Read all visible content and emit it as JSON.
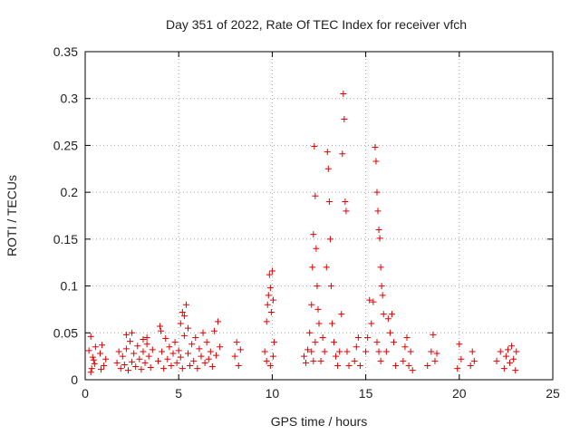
{
  "chart_data": {
    "type": "scatter",
    "title": "Day 351 of 2022, Rate Of TEC Index for receiver vfch",
    "xlabel": "GPS time / hours",
    "ylabel": "ROTI / TECUs",
    "xlim": [
      0,
      25
    ],
    "ylim": [
      0,
      0.35
    ],
    "xticks": [
      0,
      5,
      10,
      15,
      20,
      25
    ],
    "xtick_labels": [
      "0",
      "5",
      "10",
      "15",
      "20",
      "25"
    ],
    "yticks": [
      0,
      0.05,
      0.1,
      0.15,
      0.2,
      0.25,
      0.3,
      0.35
    ],
    "ytick_labels": [
      "0",
      "0.05",
      "0.1",
      "0.15",
      "0.2",
      "0.25",
      "0.3",
      "0.35"
    ],
    "grid": true,
    "marker": "+",
    "marker_color": "#e00000",
    "series": [
      {
        "name": "ROTI",
        "points": [
          [
            0.2,
            0.031
          ],
          [
            0.3,
            0.046
          ],
          [
            0.35,
            0.012
          ],
          [
            0.4,
            0.024
          ],
          [
            0.5,
            0.017
          ],
          [
            0.55,
            0.035
          ],
          [
            0.3,
            0.008
          ],
          [
            0.45,
            0.021
          ],
          [
            0.8,
            0.028
          ],
          [
            0.9,
            0.037
          ],
          [
            1.0,
            0.015
          ],
          [
            1.1,
            0.022
          ],
          [
            0.85,
            0.011
          ],
          [
            1.7,
            0.018
          ],
          [
            1.8,
            0.03
          ],
          [
            1.9,
            0.012
          ],
          [
            2.0,
            0.025
          ],
          [
            2.1,
            0.016
          ],
          [
            2.2,
            0.033
          ],
          [
            2.3,
            0.01
          ],
          [
            2.4,
            0.041
          ],
          [
            2.5,
            0.019
          ],
          [
            2.6,
            0.028
          ],
          [
            2.7,
            0.014
          ],
          [
            2.8,
            0.036
          ],
          [
            2.9,
            0.022
          ],
          [
            3.0,
            0.011
          ],
          [
            3.1,
            0.03
          ],
          [
            3.2,
            0.018
          ],
          [
            3.3,
            0.045
          ],
          [
            3.4,
            0.025
          ],
          [
            3.5,
            0.013
          ],
          [
            3.6,
            0.032
          ],
          [
            2.2,
            0.048
          ],
          [
            2.5,
            0.05
          ],
          [
            3.1,
            0.043
          ],
          [
            3.3,
            0.038
          ],
          [
            3.9,
            0.02
          ],
          [
            4.0,
            0.057
          ],
          [
            4.05,
            0.052
          ],
          [
            4.1,
            0.03
          ],
          [
            4.2,
            0.012
          ],
          [
            4.3,
            0.044
          ],
          [
            4.4,
            0.022
          ],
          [
            4.5,
            0.035
          ],
          [
            4.6,
            0.015
          ],
          [
            4.7,
            0.028
          ],
          [
            4.8,
            0.04
          ],
          [
            4.9,
            0.018
          ],
          [
            5.0,
            0.031
          ],
          [
            5.1,
            0.024
          ],
          [
            5.2,
            0.012
          ],
          [
            5.3,
            0.047
          ],
          [
            5.1,
            0.06
          ],
          [
            5.2,
            0.072
          ],
          [
            5.3,
            0.068
          ],
          [
            5.4,
            0.08
          ],
          [
            5.5,
            0.055
          ],
          [
            5.5,
            0.028
          ],
          [
            5.6,
            0.015
          ],
          [
            5.7,
            0.038
          ],
          [
            5.8,
            0.02
          ],
          [
            5.9,
            0.045
          ],
          [
            6.0,
            0.012
          ],
          [
            6.1,
            0.033
          ],
          [
            6.2,
            0.025
          ],
          [
            6.3,
            0.05
          ],
          [
            6.4,
            0.018
          ],
          [
            6.5,
            0.04
          ],
          [
            6.6,
            0.022
          ],
          [
            6.7,
            0.03
          ],
          [
            6.8,
            0.014
          ],
          [
            6.9,
            0.052
          ],
          [
            7.0,
            0.026
          ],
          [
            7.1,
            0.062
          ],
          [
            7.2,
            0.035
          ],
          [
            8.0,
            0.025
          ],
          [
            8.1,
            0.04
          ],
          [
            8.2,
            0.015
          ],
          [
            8.3,
            0.032
          ],
          [
            9.6,
            0.03
          ],
          [
            9.7,
            0.062
          ],
          [
            9.75,
            0.08
          ],
          [
            9.8,
            0.09
          ],
          [
            9.85,
            0.112
          ],
          [
            9.9,
            0.098
          ],
          [
            9.95,
            0.072
          ],
          [
            10.0,
            0.116
          ],
          [
            10.05,
            0.085
          ],
          [
            10.1,
            0.04
          ],
          [
            9.7,
            0.02
          ],
          [
            9.9,
            0.015
          ],
          [
            10.05,
            0.025
          ],
          [
            11.7,
            0.025
          ],
          [
            11.8,
            0.018
          ],
          [
            11.9,
            0.032
          ],
          [
            12.0,
            0.05
          ],
          [
            12.1,
            0.08
          ],
          [
            12.15,
            0.12
          ],
          [
            12.2,
            0.155
          ],
          [
            12.25,
            0.249
          ],
          [
            12.3,
            0.196
          ],
          [
            12.35,
            0.14
          ],
          [
            12.4,
            0.1
          ],
          [
            12.45,
            0.075
          ],
          [
            12.5,
            0.06
          ],
          [
            12.1,
            0.03
          ],
          [
            12.2,
            0.02
          ],
          [
            12.3,
            0.04
          ],
          [
            12.6,
            0.02
          ],
          [
            12.7,
            0.045
          ],
          [
            12.8,
            0.03
          ],
          [
            12.9,
            0.12
          ],
          [
            12.95,
            0.243
          ],
          [
            13.0,
            0.225
          ],
          [
            13.05,
            0.19
          ],
          [
            13.1,
            0.15
          ],
          [
            13.15,
            0.1
          ],
          [
            13.2,
            0.06
          ],
          [
            13.3,
            0.04
          ],
          [
            13.4,
            0.025
          ],
          [
            13.5,
            0.015
          ],
          [
            13.6,
            0.03
          ],
          [
            13.7,
            0.07
          ],
          [
            13.75,
            0.241
          ],
          [
            13.8,
            0.305
          ],
          [
            13.85,
            0.278
          ],
          [
            13.9,
            0.19
          ],
          [
            13.95,
            0.18
          ],
          [
            14.0,
            0.03
          ],
          [
            14.1,
            0.015
          ],
          [
            14.4,
            0.02
          ],
          [
            14.5,
            0.035
          ],
          [
            14.6,
            0.045
          ],
          [
            14.7,
            0.015
          ],
          [
            15.0,
            0.03
          ],
          [
            15.1,
            0.045
          ],
          [
            15.2,
            0.085
          ],
          [
            15.3,
            0.06
          ],
          [
            15.4,
            0.083
          ],
          [
            15.5,
            0.248
          ],
          [
            15.55,
            0.233
          ],
          [
            15.6,
            0.2
          ],
          [
            15.65,
            0.18
          ],
          [
            15.7,
            0.16
          ],
          [
            15.75,
            0.151
          ],
          [
            15.8,
            0.12
          ],
          [
            15.85,
            0.1
          ],
          [
            15.9,
            0.09
          ],
          [
            15.95,
            0.07
          ],
          [
            15.6,
            0.04
          ],
          [
            15.7,
            0.03
          ],
          [
            15.8,
            0.02
          ],
          [
            16.1,
            0.03
          ],
          [
            16.2,
            0.065
          ],
          [
            16.3,
            0.05
          ],
          [
            16.4,
            0.07
          ],
          [
            16.5,
            0.04
          ],
          [
            16.6,
            0.015
          ],
          [
            17.0,
            0.02
          ],
          [
            17.1,
            0.035
          ],
          [
            17.2,
            0.045
          ],
          [
            17.3,
            0.015
          ],
          [
            17.4,
            0.03
          ],
          [
            17.5,
            0.01
          ],
          [
            18.3,
            0.015
          ],
          [
            18.5,
            0.03
          ],
          [
            18.6,
            0.048
          ],
          [
            18.7,
            0.02
          ],
          [
            18.8,
            0.028
          ],
          [
            19.9,
            0.012
          ],
          [
            20.0,
            0.038
          ],
          [
            20.1,
            0.022
          ],
          [
            20.6,
            0.015
          ],
          [
            20.7,
            0.03
          ],
          [
            20.8,
            0.02
          ],
          [
            22.0,
            0.02
          ],
          [
            22.2,
            0.03
          ],
          [
            22.4,
            0.012
          ],
          [
            22.5,
            0.025
          ],
          [
            22.6,
            0.032
          ],
          [
            22.7,
            0.018
          ],
          [
            22.8,
            0.036
          ],
          [
            22.9,
            0.022
          ],
          [
            23.0,
            0.01
          ],
          [
            23.05,
            0.03
          ]
        ]
      }
    ]
  }
}
